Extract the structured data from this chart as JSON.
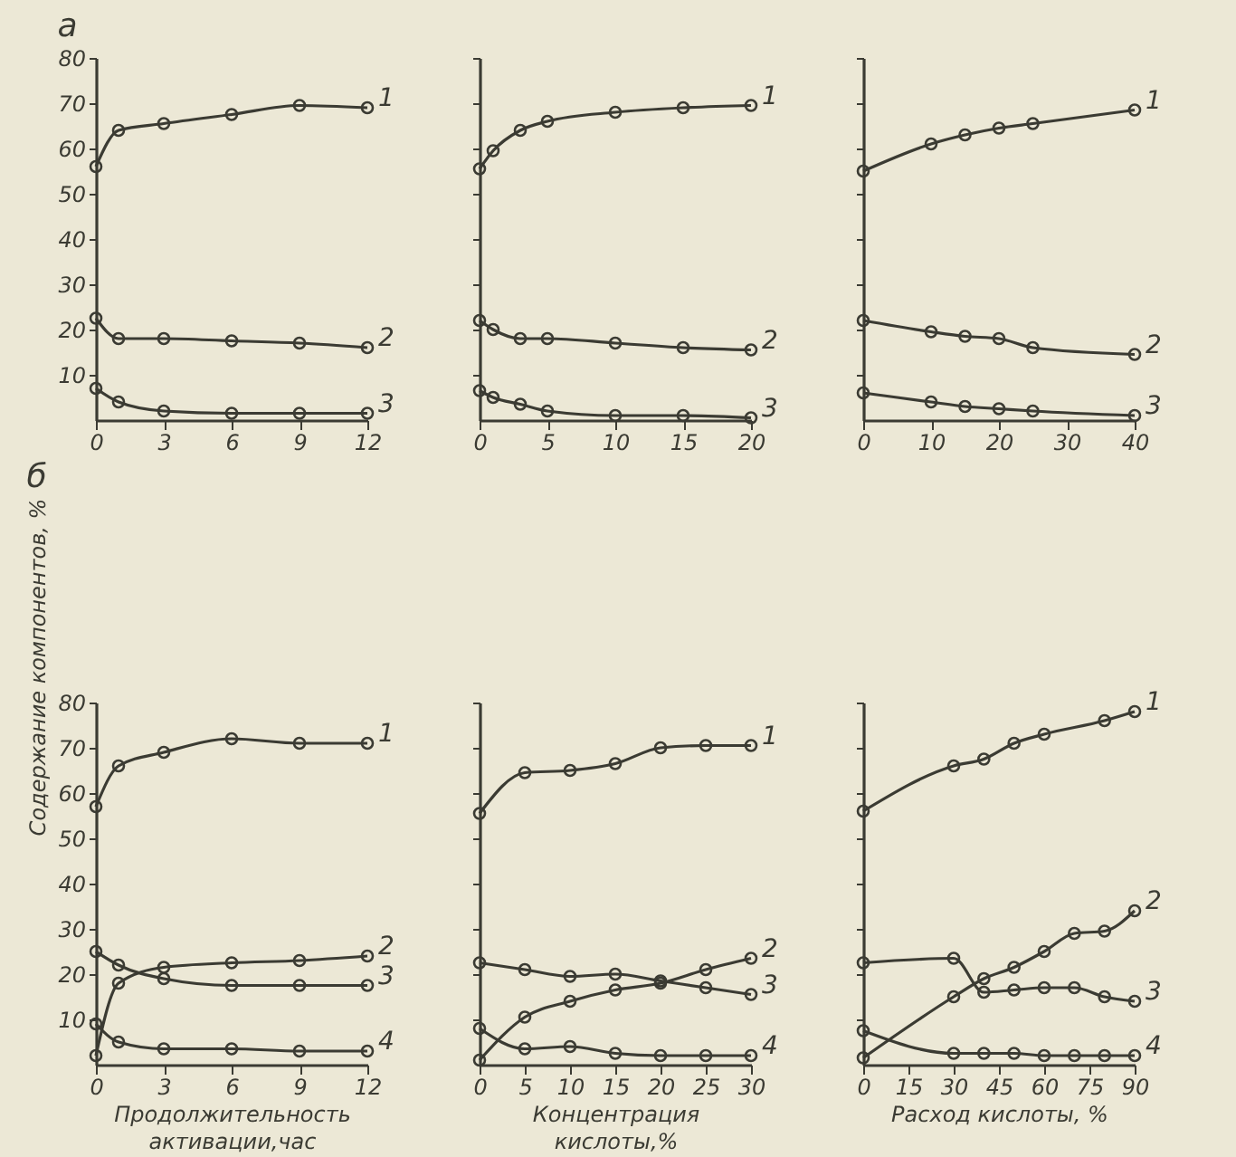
{
  "chart_data": [
    {
      "type": "line",
      "title": "а",
      "ylim": [
        0,
        80
      ],
      "yticks": [
        10,
        20,
        30,
        40,
        50,
        60,
        70,
        80
      ],
      "xlim": [
        0,
        12
      ],
      "xticks": [
        0,
        3,
        6,
        9,
        12
      ],
      "marker": "circle",
      "grid": false,
      "legend": false,
      "series": [
        {
          "name": "1",
          "color": "#3b3b33",
          "x": [
            0,
            1,
            3,
            6,
            9,
            12
          ],
          "values": [
            56,
            64,
            65.5,
            67.5,
            69.5,
            69
          ]
        },
        {
          "name": "2",
          "color": "#3b3b33",
          "x": [
            0,
            1,
            3,
            6,
            9,
            12
          ],
          "values": [
            22.5,
            18,
            18,
            17.5,
            17,
            16
          ]
        },
        {
          "name": "3",
          "color": "#3b3b33",
          "x": [
            0,
            1,
            3,
            6,
            9,
            12
          ],
          "values": [
            7,
            4,
            2,
            1.5,
            1.5,
            1.5
          ]
        }
      ]
    },
    {
      "type": "line",
      "ylim": [
        0,
        80
      ],
      "yticks": [
        10,
        20,
        30,
        40,
        50,
        60,
        70,
        80
      ],
      "xlim": [
        0,
        20
      ],
      "xticks": [
        0,
        5,
        10,
        15,
        20
      ],
      "tick_labels": "x",
      "marker": "circle",
      "grid": false,
      "legend": false,
      "series": [
        {
          "name": "1",
          "color": "#3b3b33",
          "x": [
            0,
            1,
            3,
            5,
            10,
            15,
            20
          ],
          "values": [
            55.5,
            59.5,
            64,
            66,
            68,
            69,
            69.5
          ]
        },
        {
          "name": "2",
          "color": "#3b3b33",
          "x": [
            0,
            1,
            3,
            5,
            10,
            15,
            20
          ],
          "values": [
            22,
            20,
            18,
            18,
            17,
            16,
            15.5
          ]
        },
        {
          "name": "3",
          "color": "#3b3b33",
          "x": [
            0,
            1,
            3,
            5,
            10,
            15,
            20
          ],
          "values": [
            6.5,
            5,
            3.5,
            2,
            1,
            1,
            0.5
          ]
        }
      ]
    },
    {
      "type": "line",
      "ylim": [
        0,
        80
      ],
      "yticks": [
        10,
        20,
        30,
        40,
        50,
        60,
        70,
        80
      ],
      "xlim": [
        0,
        40
      ],
      "xticks": [
        0,
        10,
        20,
        30,
        40
      ],
      "tick_labels": "x",
      "marker": "circle",
      "grid": false,
      "legend": false,
      "series": [
        {
          "name": "1",
          "color": "#3b3b33",
          "x": [
            0,
            10,
            15,
            20,
            25,
            40
          ],
          "values": [
            55,
            61,
            63,
            64.5,
            65.5,
            68.5
          ]
        },
        {
          "name": "2",
          "color": "#3b3b33",
          "x": [
            0,
            10,
            15,
            20,
            25,
            40
          ],
          "values": [
            22,
            19.5,
            18.5,
            18,
            16,
            14.5
          ]
        },
        {
          "name": "3",
          "color": "#3b3b33",
          "x": [
            0,
            10,
            15,
            20,
            25,
            40
          ],
          "values": [
            6,
            4,
            3,
            2.5,
            2,
            1
          ]
        }
      ]
    },
    {
      "type": "line",
      "title": "б",
      "ylabel": "Содержание компонентов, %",
      "xlabel": "Продолжительность\nактивации,час",
      "ylim": [
        0,
        80
      ],
      "yticks": [
        10,
        20,
        30,
        40,
        50,
        60,
        70,
        80
      ],
      "xlim": [
        0,
        12
      ],
      "xticks": [
        0,
        3,
        6,
        9,
        12
      ],
      "marker": "circle",
      "grid": false,
      "legend": false,
      "series": [
        {
          "name": "1",
          "color": "#3b3b33",
          "x": [
            0,
            1,
            3,
            6,
            9,
            12
          ],
          "values": [
            57,
            66,
            69,
            72,
            71,
            71
          ]
        },
        {
          "name": "2",
          "color": "#3b3b33",
          "x": [
            0,
            1,
            3,
            6,
            9,
            12
          ],
          "values": [
            2,
            18,
            21.5,
            22.5,
            23,
            24
          ]
        },
        {
          "name": "3",
          "color": "#3b3b33",
          "x": [
            0,
            1,
            3,
            6,
            9,
            12
          ],
          "values": [
            25,
            22,
            19,
            17.5,
            17.5,
            17.5
          ]
        },
        {
          "name": "4",
          "color": "#3b3b33",
          "x": [
            0,
            1,
            3,
            6,
            9,
            12
          ],
          "values": [
            9,
            5,
            3.5,
            3.5,
            3,
            3
          ]
        }
      ]
    },
    {
      "type": "line",
      "xlabel": "Концентрация\nкислоты,%",
      "ylim": [
        0,
        80
      ],
      "yticks": [
        10,
        20,
        30,
        40,
        50,
        60,
        70,
        80
      ],
      "xlim": [
        0,
        30
      ],
      "xticks": [
        0,
        5,
        10,
        15,
        20,
        25,
        30
      ],
      "tick_labels": "x",
      "marker": "circle",
      "grid": false,
      "legend": false,
      "series": [
        {
          "name": "1",
          "color": "#3b3b33",
          "x": [
            0,
            5,
            10,
            15,
            20,
            25,
            30
          ],
          "values": [
            55.5,
            64.5,
            65,
            66.5,
            70,
            70.5,
            70.5
          ]
        },
        {
          "name": "2",
          "color": "#3b3b33",
          "x": [
            0,
            5,
            10,
            15,
            20,
            25,
            30
          ],
          "values": [
            1,
            10.5,
            14,
            16.5,
            18,
            21,
            23.5
          ]
        },
        {
          "name": "3",
          "color": "#3b3b33",
          "x": [
            0,
            5,
            10,
            15,
            20,
            25,
            30
          ],
          "values": [
            22.5,
            21,
            19.5,
            20,
            18.5,
            17,
            15.5
          ]
        },
        {
          "name": "4",
          "color": "#3b3b33",
          "x": [
            0,
            5,
            10,
            15,
            20,
            25,
            30
          ],
          "values": [
            8,
            3.5,
            4,
            2.5,
            2,
            2,
            2
          ]
        }
      ]
    },
    {
      "type": "line",
      "xlabel": "Расход кислоты, %",
      "ylim": [
        0,
        80
      ],
      "yticks": [
        10,
        20,
        30,
        40,
        50,
        60,
        70,
        80
      ],
      "xlim": [
        0,
        90
      ],
      "xticks": [
        0,
        15,
        30,
        45,
        60,
        75,
        90
      ],
      "tick_labels": "x",
      "marker": "circle",
      "grid": false,
      "legend": false,
      "series": [
        {
          "name": "1",
          "color": "#3b3b33",
          "x": [
            0,
            30,
            40,
            50,
            60,
            80,
            90
          ],
          "values": [
            56,
            66,
            67.5,
            71,
            73,
            76,
            78
          ]
        },
        {
          "name": "2",
          "color": "#3b3b33",
          "x": [
            0,
            30,
            40,
            50,
            60,
            70,
            80,
            90
          ],
          "values": [
            1.5,
            15,
            19,
            21.5,
            25,
            29,
            29.5,
            34
          ]
        },
        {
          "name": "3",
          "color": "#3b3b33",
          "x": [
            0,
            30,
            40,
            50,
            60,
            70,
            80,
            90
          ],
          "values": [
            22.5,
            23.5,
            16,
            16.5,
            17,
            17,
            15,
            14
          ]
        },
        {
          "name": "4",
          "color": "#3b3b33",
          "x": [
            0,
            30,
            40,
            50,
            60,
            70,
            80,
            90
          ],
          "values": [
            7.5,
            2.5,
            2.5,
            2.5,
            2,
            2,
            2,
            2
          ]
        }
      ]
    }
  ]
}
